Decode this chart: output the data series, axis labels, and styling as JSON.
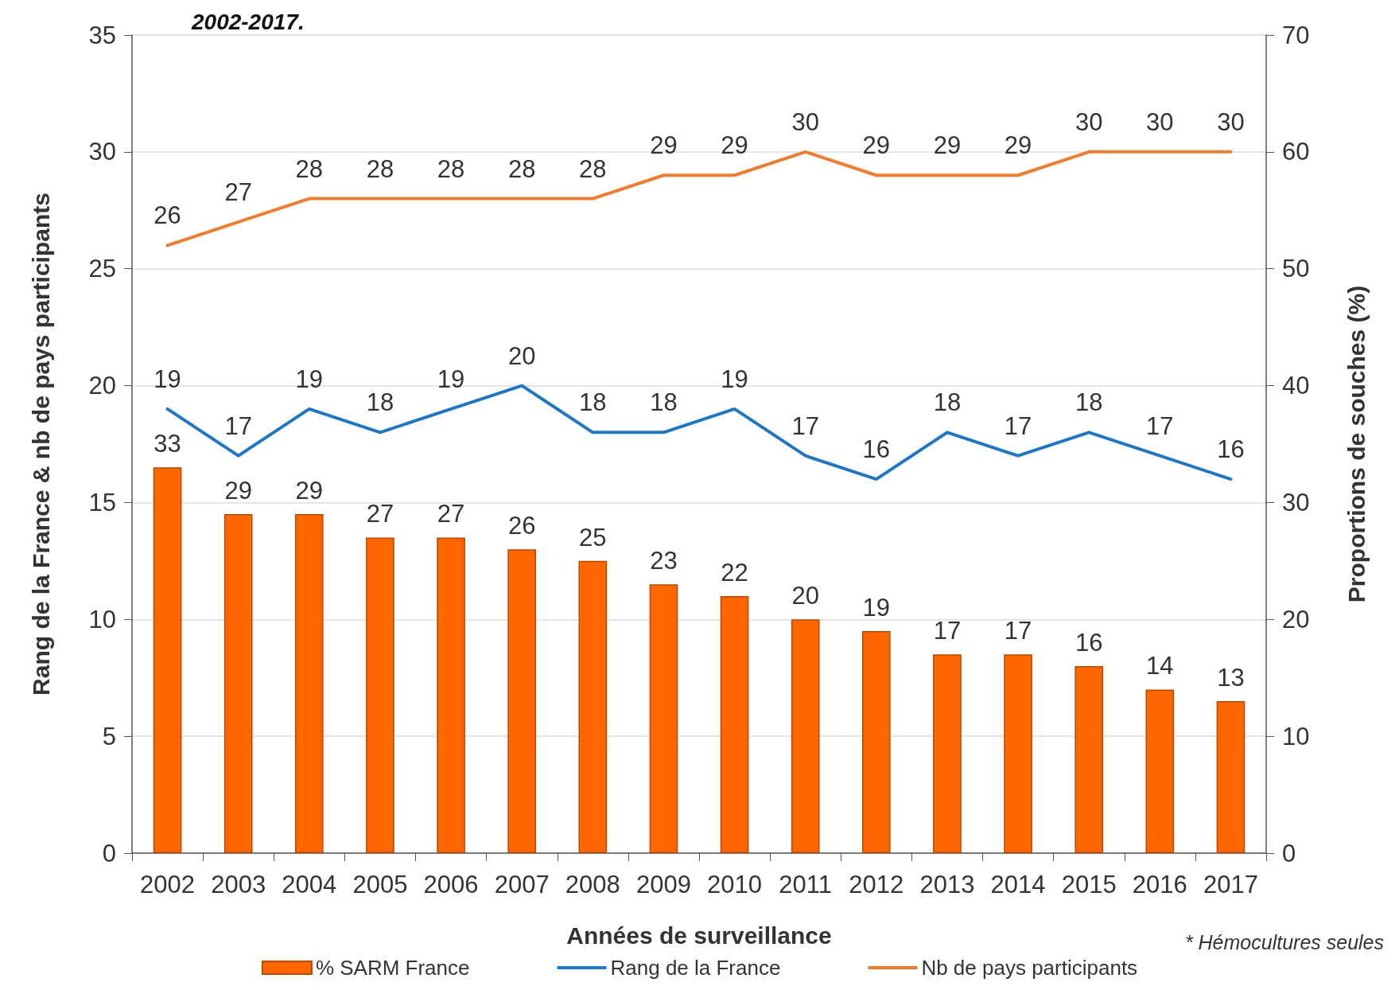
{
  "chart_data": {
    "type": "bar",
    "title": "2002-2017.",
    "xlabel": "Années de surveillance",
    "ylabel": "Rang de la France & nb de pays participants",
    "y2label": "Proportions de souches (%)",
    "annotations": [
      "* Hémocultures seules"
    ],
    "categories": [
      "2002",
      "2003",
      "2004",
      "2005",
      "2006",
      "2007",
      "2008",
      "2009",
      "2010",
      "2011",
      "2012",
      "2013",
      "2014",
      "2015",
      "2016",
      "2017"
    ],
    "series": [
      {
        "name": "% SARM France",
        "axis": "y2",
        "color": "#ff6600",
        "values": [
          33,
          29,
          29,
          27,
          27,
          26,
          25,
          23,
          22,
          20,
          19,
          17,
          17,
          16,
          14,
          13
        ]
      },
      {
        "name": "Rang de la France",
        "type": "line",
        "color": "#1f77c4",
        "values": [
          19,
          17,
          19,
          18,
          19,
          20,
          18,
          18,
          19,
          17,
          16,
          18,
          17,
          18,
          17,
          16
        ]
      },
      {
        "name": "Nb de pays participants",
        "type": "line",
        "color": "#ed7d31",
        "values": [
          26,
          27,
          28,
          28,
          28,
          28,
          28,
          29,
          29,
          30,
          29,
          29,
          29,
          30,
          30,
          30
        ]
      }
    ],
    "ylim": [
      0,
      35
    ],
    "yticks": [
      0,
      5,
      10,
      15,
      20,
      25,
      30,
      35
    ],
    "y2lim": [
      0,
      70
    ],
    "y2ticks": [
      0,
      10,
      20,
      30,
      40,
      50,
      60,
      70
    ],
    "grid": "y",
    "legend": "bottom",
    "data_labels": true,
    "marker": "none",
    "line_style": "solid"
  }
}
